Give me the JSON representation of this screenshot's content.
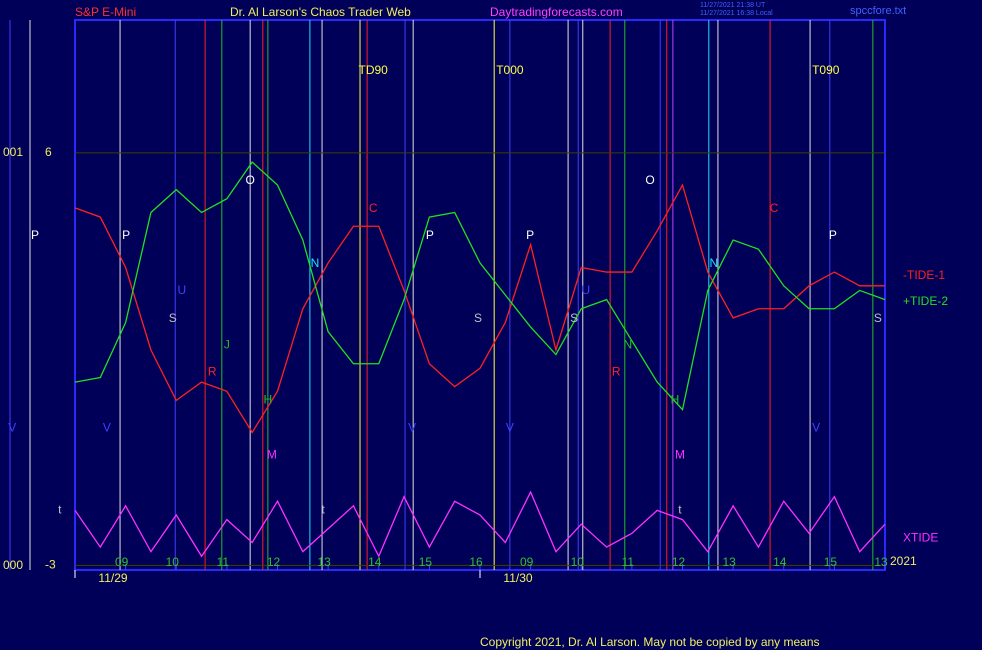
{
  "chart_data": {
    "type": "line",
    "title": "Dr. Al Larson's Chaos Trader Web",
    "subtitle": "S&P E-Mini",
    "x": [
      0,
      0.5,
      1,
      1.5,
      2,
      2.5,
      3,
      3.5,
      4,
      4.5,
      5,
      5.5,
      6,
      6.5,
      7,
      7.5,
      8,
      8.5,
      9,
      9.5,
      10,
      10.5,
      11,
      11.5,
      12,
      12.5,
      13,
      13.5,
      14,
      14.5,
      15,
      15.5,
      16
    ],
    "series": [
      {
        "name": "-TIDE-1",
        "color": "#ff2020",
        "values": [
          4.8,
          4.6,
          3.5,
          1.7,
          0.6,
          1.0,
          0.8,
          -0.1,
          0.8,
          2.6,
          3.6,
          4.4,
          4.4,
          3.0,
          1.4,
          0.9,
          1.3,
          2.3,
          4.0,
          1.7,
          3.5,
          3.4,
          3.4,
          4.3,
          5.3,
          3.4,
          2.4,
          2.6,
          2.6,
          3.1,
          3.4,
          3.1,
          3.1
        ]
      },
      {
        "name": "+TIDE-2",
        "color": "#20e020",
        "values": [
          1.0,
          1.1,
          2.3,
          4.7,
          5.2,
          4.7,
          5.0,
          5.8,
          5.3,
          4.1,
          2.1,
          1.4,
          1.4,
          2.8,
          4.6,
          4.7,
          3.6,
          2.9,
          2.2,
          1.6,
          2.6,
          2.8,
          1.9,
          1.0,
          0.4,
          3.0,
          4.1,
          3.9,
          3.1,
          2.6,
          2.6,
          3.0,
          2.8
        ]
      },
      {
        "name": "XTIDE",
        "color": "#ff30ff",
        "values": [
          -1.8,
          -2.6,
          -1.7,
          -2.7,
          -1.9,
          -2.8,
          -2.0,
          -2.5,
          -1.6,
          -2.7,
          -2.2,
          -1.7,
          -2.8,
          -1.5,
          -2.6,
          -1.6,
          -1.9,
          -2.5,
          -1.4,
          -2.7,
          -2.1,
          -2.6,
          -2.3,
          -1.8,
          -2.0,
          -2.7,
          -1.7,
          -2.6,
          -1.6,
          -2.3,
          -1.5,
          -2.7,
          -2.1
        ]
      }
    ],
    "xlim": [
      0,
      16
    ],
    "ylim": [
      -3.1,
      8.9
    ],
    "yticks": [
      6,
      -3
    ],
    "left_labels": [
      "001",
      "000"
    ],
    "xticks": [
      {
        "value": 1,
        "label": "09"
      },
      {
        "value": 2,
        "label": "10"
      },
      {
        "value": 3,
        "label": "11"
      },
      {
        "value": 4,
        "label": "12"
      },
      {
        "value": 5,
        "label": "13"
      },
      {
        "value": 6,
        "label": "14"
      },
      {
        "value": 7,
        "label": "15"
      },
      {
        "value": 8,
        "label": "16"
      },
      {
        "value": 9,
        "label": "09"
      },
      {
        "value": 10,
        "label": "10"
      },
      {
        "value": 11,
        "label": "11"
      },
      {
        "value": 12,
        "label": "12"
      },
      {
        "value": 13,
        "label": "13"
      },
      {
        "value": 14,
        "label": "14"
      },
      {
        "value": 15,
        "label": "15"
      },
      {
        "value": 16,
        "label": "13"
      }
    ],
    "date_ticks": [
      {
        "value": 0,
        "label": "11/29"
      },
      {
        "value": 8,
        "label": "11/30"
      }
    ],
    "year": "2021",
    "grid": true,
    "markers": [
      {
        "x": 0.89,
        "color": "#e0e0e0"
      },
      {
        "x": 1.98,
        "color": "#4040ff"
      },
      {
        "x": 2.57,
        "color": "#ff2020"
      },
      {
        "x": 2.9,
        "color": "#20c020"
      },
      {
        "x": 3.46,
        "color": "#e0e0e0"
      },
      {
        "x": 3.71,
        "color": "#ff2020"
      },
      {
        "x": 3.81,
        "color": "#20c020"
      },
      {
        "x": 4.64,
        "color": "#20e0ff"
      },
      {
        "x": 4.88,
        "color": "#e0e0e0"
      },
      {
        "x": 5.63,
        "color": "#ffff40"
      },
      {
        "x": 5.77,
        "color": "#ff2020"
      },
      {
        "x": 6.52,
        "color": "#4040ff"
      },
      {
        "x": 6.68,
        "color": "#e0e0e0"
      },
      {
        "x": 8.28,
        "color": "#ffff40"
      },
      {
        "x": 8.59,
        "color": "#4040ff"
      },
      {
        "x": 9.74,
        "color": "#e0e0e0"
      },
      {
        "x": 9.94,
        "color": "#4040ff"
      },
      {
        "x": 10.03,
        "color": "#e0e0e0"
      },
      {
        "x": 10.57,
        "color": "#ff2020"
      },
      {
        "x": 10.86,
        "color": "#20c020"
      },
      {
        "x": 11.56,
        "color": "#4040ff"
      },
      {
        "x": 11.69,
        "color": "#ff2020"
      },
      {
        "x": 11.81,
        "color": "#c040ff"
      },
      {
        "x": 12.52,
        "color": "#20e0ff"
      },
      {
        "x": 12.7,
        "color": "#e0e0e0"
      },
      {
        "x": 13.73,
        "color": "#ff2020"
      },
      {
        "x": 14.52,
        "color": "#e0e0e0"
      },
      {
        "x": 14.91,
        "color": "#4040ff"
      },
      {
        "x": 15.76,
        "color": "#20c020"
      }
    ],
    "annotations": [
      {
        "text": "P",
        "color": "#ffffff",
        "x": -0.79,
        "y": 4.19
      },
      {
        "text": "P",
        "color": "#ffffff",
        "x": 1.01,
        "y": 4.19
      },
      {
        "text": "U",
        "color": "#4040ff",
        "x": 2.11,
        "y": 2.99
      },
      {
        "text": "S",
        "color": "#c0c0c0",
        "x": 1.93,
        "y": 2.38
      },
      {
        "text": "J",
        "color": "#20c020",
        "x": 3.0,
        "y": 1.8
      },
      {
        "text": "R",
        "color": "#ff2020",
        "x": 2.71,
        "y": 1.21
      },
      {
        "text": "O",
        "color": "#ffffff",
        "x": 3.46,
        "y": 5.39
      },
      {
        "text": "H",
        "color": "#20c020",
        "x": 3.81,
        "y": 0.6
      },
      {
        "text": "M",
        "color": "#ff30ff",
        "x": 3.89,
        "y": -0.6
      },
      {
        "text": "N",
        "color": "#20e0ff",
        "x": 4.74,
        "y": 3.58
      },
      {
        "text": "C",
        "color": "#ff2020",
        "x": 5.89,
        "y": 4.78
      },
      {
        "text": "P",
        "color": "#ffffff",
        "x": 7.01,
        "y": 4.19
      },
      {
        "text": "S",
        "color": "#c0c0c0",
        "x": 7.96,
        "y": 2.38
      },
      {
        "text": "P",
        "color": "#ffffff",
        "x": 8.99,
        "y": 4.19
      },
      {
        "text": "S",
        "color": "#c0c0c0",
        "x": 9.86,
        "y": 2.38
      },
      {
        "text": "U",
        "color": "#4040ff",
        "x": 10.09,
        "y": 2.99
      },
      {
        "text": "N",
        "color": "#20c020",
        "x": 10.92,
        "y": 1.8
      },
      {
        "text": "R",
        "color": "#ff2020",
        "x": 10.69,
        "y": 1.21
      },
      {
        "text": "O",
        "color": "#ffffff",
        "x": 11.36,
        "y": 5.39
      },
      {
        "text": "H",
        "color": "#20c020",
        "x": 11.85,
        "y": 0.6
      },
      {
        "text": "M",
        "color": "#ff30ff",
        "x": 11.95,
        "y": -0.6
      },
      {
        "text": "N",
        "color": "#20e0ff",
        "x": 12.62,
        "y": 3.58
      },
      {
        "text": "C",
        "color": "#ff2020",
        "x": 13.81,
        "y": 4.78
      },
      {
        "text": "P",
        "color": "#ffffff",
        "x": 14.97,
        "y": 4.19
      },
      {
        "text": "S",
        "color": "#c0c0c0",
        "x": 15.86,
        "y": 2.38
      },
      {
        "text": "V",
        "color": "#4040ff",
        "x": -1.24,
        "y": -0.01
      },
      {
        "text": "V",
        "color": "#4040ff",
        "x": 0.63,
        "y": -0.01
      },
      {
        "text": "V",
        "color": "#4040ff",
        "x": 6.66,
        "y": -0.01
      },
      {
        "text": "V",
        "color": "#4040ff",
        "x": 8.59,
        "y": -0.01
      },
      {
        "text": "V",
        "color": "#4040ff",
        "x": 14.64,
        "y": -0.01
      },
      {
        "text": "t",
        "color": "#c0c0c0",
        "x": -0.3,
        "y": -1.8
      },
      {
        "text": "t",
        "color": "#c0c0c0",
        "x": 4.9,
        "y": -1.8
      },
      {
        "text": "t",
        "color": "#c0c0c0",
        "x": 11.95,
        "y": -1.8
      },
      {
        "text": "TD90",
        "color": "#ffff40",
        "x": 5.89,
        "y": 7.79
      },
      {
        "text": "T000",
        "color": "#ffff40",
        "x": 8.59,
        "y": 7.79
      },
      {
        "text": "T090",
        "color": "#ffff40",
        "x": 14.83,
        "y": 7.79
      }
    ]
  },
  "page": {
    "site": "Daytradingforecasts.com",
    "stamp_ut": "11/27/2021 21:38 UT",
    "stamp_local": "11/27/2021 16:38 Local",
    "file": "spccfore.txt",
    "copyright": "Copyright 2021, Dr. Al Larson. May not be copied by any means"
  }
}
